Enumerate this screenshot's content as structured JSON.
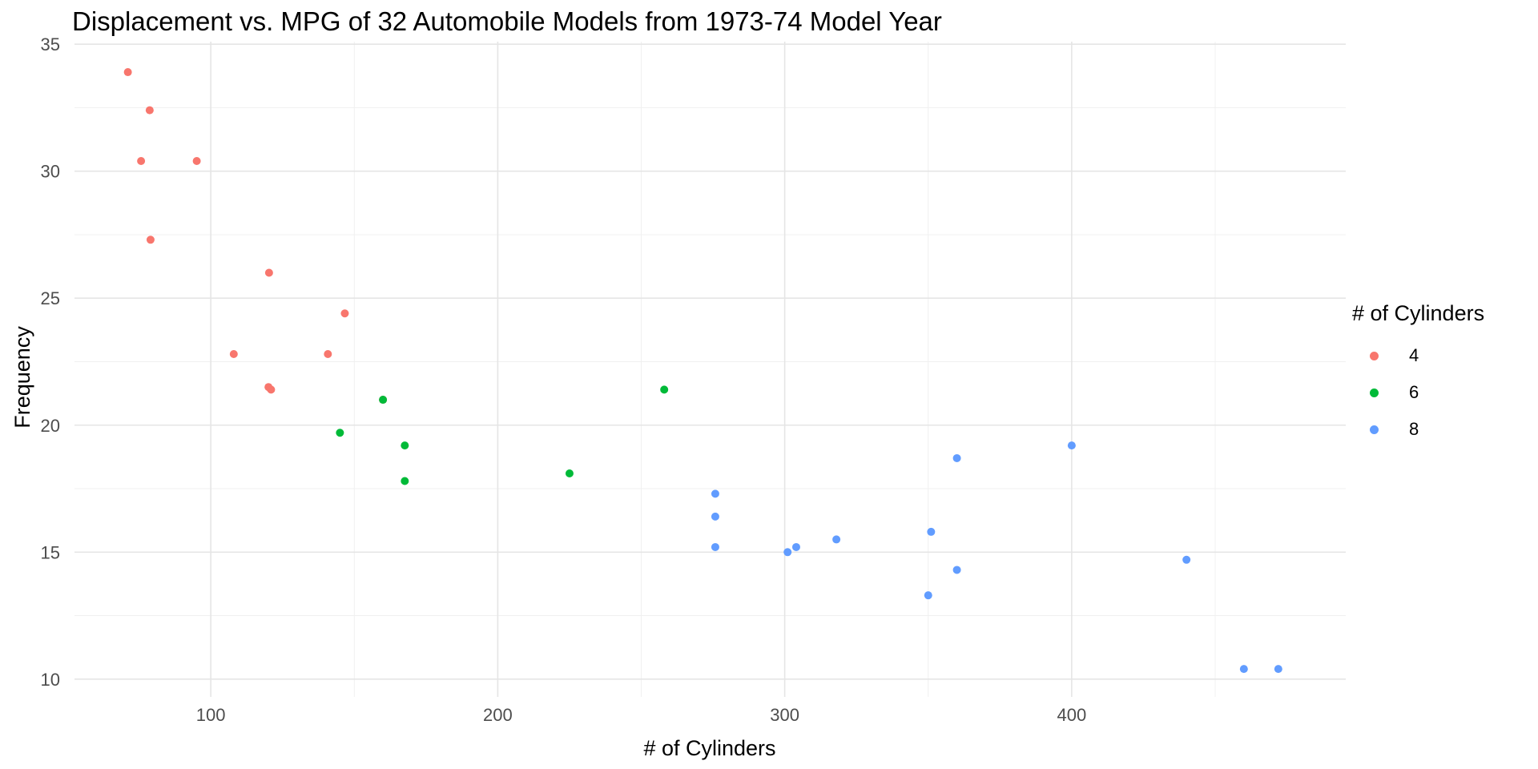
{
  "chart_data": {
    "type": "scatter",
    "title": "Displacement vs. MPG of 32 Automobile Models from 1973-74 Model Year",
    "xlabel": "# of Cylinders",
    "ylabel": "Frequency",
    "xlim": [
      52.5,
      495.5
    ],
    "ylim": [
      9.3,
      35.1
    ],
    "xticks": [
      100,
      200,
      300,
      400
    ],
    "yticks": [
      10,
      15,
      20,
      25,
      30,
      35
    ],
    "grid": true,
    "legend": {
      "title": "# of Cylinders",
      "position": "right"
    },
    "series": [
      {
        "name": "4",
        "color": "#F8766D",
        "points": [
          [
            160,
            21
          ],
          [
            108,
            22.8
          ],
          [
            146.7,
            24.4
          ],
          [
            140.8,
            22.8
          ],
          [
            78.7,
            32.4
          ],
          [
            75.7,
            30.4
          ],
          [
            71.1,
            33.9
          ],
          [
            120.1,
            21.5
          ],
          [
            79,
            27.3
          ],
          [
            120.3,
            26
          ],
          [
            95.1,
            30.4
          ],
          [
            121,
            21.4
          ]
        ]
      },
      {
        "name": "6",
        "color": "#00BA38",
        "points": [
          [
            160,
            21
          ],
          [
            258,
            21.4
          ],
          [
            225,
            18.1
          ],
          [
            167.6,
            19.2
          ],
          [
            167.6,
            17.8
          ],
          [
            145,
            19.7
          ]
        ]
      },
      {
        "name": "8",
        "color": "#619CFF",
        "points": [
          [
            360,
            18.7
          ],
          [
            360,
            14.3
          ],
          [
            275.8,
            16.4
          ],
          [
            275.8,
            17.3
          ],
          [
            275.8,
            15.2
          ],
          [
            472,
            10.4
          ],
          [
            460,
            10.4
          ],
          [
            440,
            14.7
          ],
          [
            318,
            15.5
          ],
          [
            304,
            15.2
          ],
          [
            350,
            13.3
          ],
          [
            400,
            19.2
          ],
          [
            351,
            15.8
          ],
          [
            301,
            15
          ]
        ]
      }
    ]
  }
}
